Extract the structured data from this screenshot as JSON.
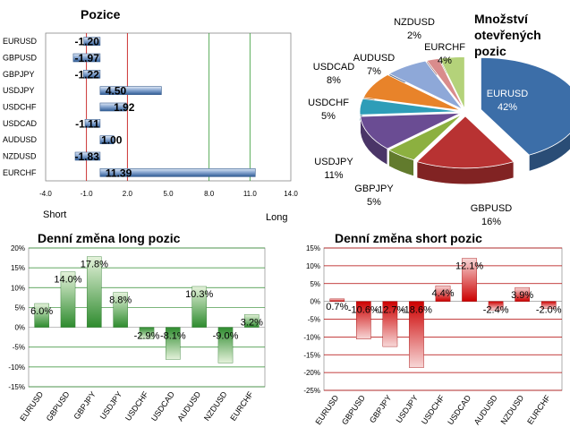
{
  "chart_data": [
    {
      "type": "bar",
      "orientation": "horizontal",
      "title": "Pozice",
      "categories": [
        "EURUSD",
        "GBPUSD",
        "GBPJPY",
        "USDJPY",
        "USDCHF",
        "USDCAD",
        "AUDUSD",
        "NZDUSD",
        "EURCHF"
      ],
      "values": [
        -1.2,
        -1.97,
        -1.22,
        4.5,
        1.92,
        -1.11,
        1.0,
        -1.83,
        11.39
      ],
      "value_labels": [
        "-1.20",
        "-1.97",
        "-1.22",
        "4.50",
        "1.92",
        "-1.11",
        "1.00",
        "-1.83",
        "11.39"
      ],
      "xlim": [
        -4.0,
        14.0
      ],
      "x_ticks": [
        "-4.0",
        "-1.0",
        "2.0",
        "5.0",
        "8.0",
        "11.0",
        "14.0"
      ],
      "reference_lines": [
        {
          "value": -1.0,
          "color": "#c00000"
        },
        {
          "value": 2.0,
          "color": "#c00000"
        },
        {
          "value": 8.0,
          "color": "#339933"
        },
        {
          "value": 11.0,
          "color": "#339933"
        }
      ],
      "left_label": "Short",
      "right_label": "Long",
      "bar_color": "#4f81bd"
    },
    {
      "type": "pie",
      "title_lines": [
        "Množství",
        "otevřených",
        "pozic"
      ],
      "slices": [
        {
          "label": "EURUSD",
          "percent_label": "42%",
          "value": 42,
          "color": "#3c6ea8"
        },
        {
          "label": "GBPUSD",
          "percent_label": "16%",
          "value": 16,
          "color": "#b83232"
        },
        {
          "label": "GBPJPY",
          "percent_label": "5%",
          "value": 5,
          "color": "#8cb040"
        },
        {
          "label": "USDJPY",
          "percent_label": "11%",
          "value": 11,
          "color": "#6a4c93"
        },
        {
          "label": "USDCHF",
          "percent_label": "5%",
          "value": 5,
          "color": "#2e9db8"
        },
        {
          "label": "USDCAD",
          "percent_label": "8%",
          "value": 8,
          "color": "#e8832a"
        },
        {
          "label": "AUDUSD",
          "percent_label": "7%",
          "value": 7,
          "color": "#8ea8d8"
        },
        {
          "label": "NZDUSD",
          "percent_label": "2%",
          "value": 2,
          "color": "#d98c8c"
        },
        {
          "label": "EURCHF",
          "percent_label": "4%",
          "value": 4,
          "color": "#b4d27a"
        }
      ]
    },
    {
      "type": "bar",
      "title": "Denní změna long pozic",
      "categories": [
        "EURUSD",
        "GBPUSD",
        "GBPJPY",
        "USDJPY",
        "USDCHF",
        "USDCAD",
        "AUDUSD",
        "NZDUSD",
        "EURCHF"
      ],
      "values": [
        6.0,
        14.0,
        17.8,
        8.8,
        -2.9,
        -8.1,
        10.3,
        -9.0,
        3.2
      ],
      "value_labels": [
        "6.0%",
        "14.0%",
        "17.8%",
        "8.8%",
        "-2.9%",
        "-8.1%",
        "10.3%",
        "-9.0%",
        "3.2%"
      ],
      "ylim": [
        -15,
        20
      ],
      "y_ticks": [
        "20%",
        "15%",
        "10%",
        "5%",
        "0%",
        "-5%",
        "-10%",
        "-15%"
      ],
      "grid": true,
      "bar_color": "#2e8b2e"
    },
    {
      "type": "bar",
      "title": "Denní změna short pozic",
      "categories": [
        "EURUSD",
        "GBPUSD",
        "GBPJPY",
        "USDJPY",
        "USDCHF",
        "USDCAD",
        "AUDUSD",
        "NZDUSD",
        "EURCHF"
      ],
      "values": [
        0.7,
        -10.6,
        -12.7,
        -18.6,
        4.4,
        12.1,
        -2.4,
        3.9,
        -2.0
      ],
      "value_labels": [
        "0.7%",
        "-10.6%",
        "-12.7%",
        "-18.6%",
        "4.4%",
        "12.1%",
        "-2.4%",
        "3.9%",
        "-2.0%"
      ],
      "ylim": [
        -25,
        15
      ],
      "y_ticks": [
        "15%",
        "10%",
        "5%",
        "0%",
        "-5%",
        "-10%",
        "-15%",
        "-20%",
        "-25%"
      ],
      "grid": true,
      "bar_color": "#cc0000"
    }
  ]
}
